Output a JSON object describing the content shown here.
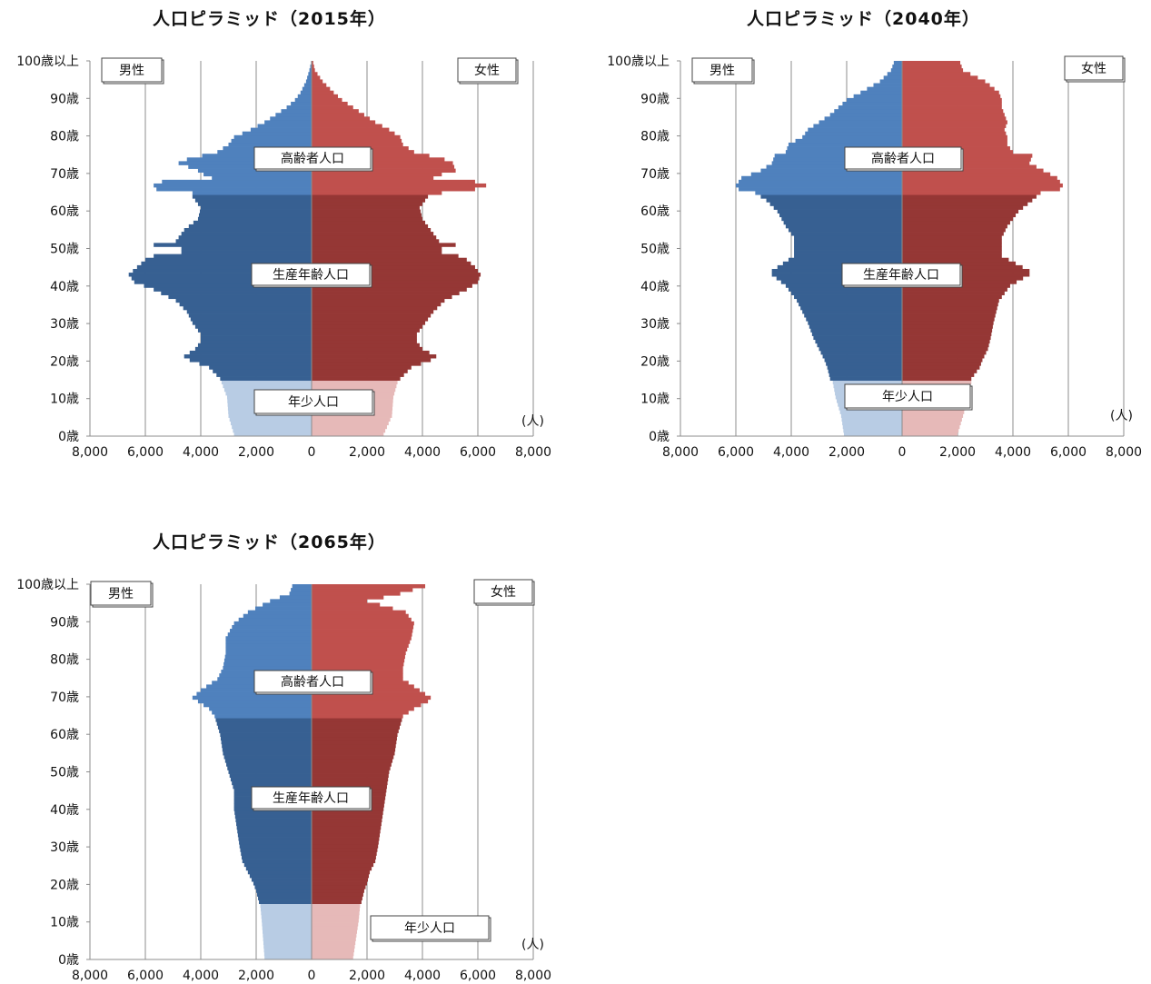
{
  "chart_data": [
    {
      "type": "bar",
      "subtype": "population-pyramid",
      "title": "人口ピラミッド（2015年）",
      "unit_label": "(人)",
      "labels": {
        "male": "男性",
        "female": "女性",
        "elderly": "高齢者人口",
        "working": "生産年齢人口",
        "youth": "年少人口"
      },
      "y_ticks": [
        "0歳",
        "10歳",
        "20歳",
        "30歳",
        "40歳",
        "50歳",
        "60歳",
        "70歳",
        "80歳",
        "90歳",
        "100歳以上"
      ],
      "x_ticks": [
        "8,000",
        "6,000",
        "4,000",
        "2,000",
        "0",
        "2,000",
        "4,000",
        "6,000",
        "8,000"
      ],
      "xlim": [
        -8000,
        8000
      ],
      "age_bins": "0..100 (1-year)",
      "colors": {
        "male_youth": "#b8cce4",
        "male_working": "#376092",
        "male_elderly": "#4f81bd",
        "female_youth": "#e6b9b8",
        "female_working": "#953735",
        "female_elderly": "#c0504d"
      },
      "male_anchors": [
        [
          0,
          2800
        ],
        [
          5,
          3000
        ],
        [
          10,
          3050
        ],
        [
          14,
          3250
        ],
        [
          15,
          3300
        ],
        [
          18,
          3700
        ],
        [
          20,
          4400
        ],
        [
          21,
          4600
        ],
        [
          23,
          4200
        ],
        [
          25,
          4000
        ],
        [
          27,
          4000
        ],
        [
          30,
          4300
        ],
        [
          33,
          4500
        ],
        [
          36,
          4900
        ],
        [
          39,
          5700
        ],
        [
          41,
          6400
        ],
        [
          43,
          6600
        ],
        [
          45,
          6300
        ],
        [
          47,
          6000
        ],
        [
          48,
          5700
        ],
        [
          49,
          4700
        ],
        [
          50,
          4700
        ],
        [
          51,
          5700
        ],
        [
          52,
          4900
        ],
        [
          55,
          4600
        ],
        [
          58,
          4100
        ],
        [
          61,
          4000
        ],
        [
          64,
          4300
        ],
        [
          65,
          4300
        ],
        [
          66,
          5600
        ],
        [
          67,
          5700
        ],
        [
          68,
          5400
        ],
        [
          69,
          3600
        ],
        [
          70,
          3900
        ],
        [
          71,
          4100
        ],
        [
          73,
          4800
        ],
        [
          74,
          4500
        ],
        [
          76,
          3400
        ],
        [
          78,
          3000
        ],
        [
          80,
          2800
        ],
        [
          82,
          2200
        ],
        [
          84,
          1700
        ],
        [
          86,
          1300
        ],
        [
          88,
          900
        ],
        [
          90,
          600
        ],
        [
          92,
          400
        ],
        [
          95,
          200
        ],
        [
          98,
          80
        ],
        [
          100,
          20
        ]
      ],
      "female_anchors": [
        [
          0,
          2600
        ],
        [
          5,
          2900
        ],
        [
          10,
          2950
        ],
        [
          14,
          3100
        ],
        [
          15,
          3200
        ],
        [
          18,
          3600
        ],
        [
          20,
          4300
        ],
        [
          21,
          4500
        ],
        [
          23,
          4000
        ],
        [
          25,
          3800
        ],
        [
          27,
          3800
        ],
        [
          30,
          4100
        ],
        [
          33,
          4400
        ],
        [
          36,
          4800
        ],
        [
          39,
          5600
        ],
        [
          41,
          6000
        ],
        [
          43,
          6100
        ],
        [
          45,
          5900
        ],
        [
          47,
          5600
        ],
        [
          48,
          5300
        ],
        [
          49,
          4700
        ],
        [
          50,
          4700
        ],
        [
          51,
          5200
        ],
        [
          52,
          4600
        ],
        [
          55,
          4300
        ],
        [
          58,
          4000
        ],
        [
          61,
          3900
        ],
        [
          64,
          4200
        ],
        [
          65,
          4700
        ],
        [
          66,
          5900
        ],
        [
          67,
          6300
        ],
        [
          68,
          5900
        ],
        [
          69,
          4400
        ],
        [
          70,
          4700
        ],
        [
          71,
          5200
        ],
        [
          73,
          5100
        ],
        [
          74,
          4800
        ],
        [
          76,
          3700
        ],
        [
          78,
          3300
        ],
        [
          80,
          3200
        ],
        [
          82,
          2800
        ],
        [
          84,
          2300
        ],
        [
          86,
          1900
        ],
        [
          88,
          1500
        ],
        [
          90,
          1100
        ],
        [
          92,
          800
        ],
        [
          95,
          400
        ],
        [
          98,
          120
        ],
        [
          100,
          60
        ]
      ]
    },
    {
      "type": "bar",
      "subtype": "population-pyramid",
      "title": "人口ピラミッド（2040年）",
      "unit_label": "(人)",
      "labels": {
        "male": "男性",
        "female": "女性",
        "elderly": "高齢者人口",
        "working": "生産年齢人口",
        "youth": "年少人口"
      },
      "y_ticks": [
        "0歳",
        "10歳",
        "20歳",
        "30歳",
        "40歳",
        "50歳",
        "60歳",
        "70歳",
        "80歳",
        "90歳",
        "100歳以上"
      ],
      "x_ticks": [
        "8,000",
        "6,000",
        "4,000",
        "2,000",
        "0",
        "2,000",
        "4,000",
        "6,000",
        "8,000"
      ],
      "xlim": [
        -8000,
        8000
      ],
      "age_bins": "0..100 (1-year)",
      "colors": {
        "male_youth": "#b8cce4",
        "male_working": "#376092",
        "male_elderly": "#4f81bd",
        "female_youth": "#e6b9b8",
        "female_working": "#953735",
        "female_elderly": "#c0504d"
      },
      "male_anchors": [
        [
          0,
          2100
        ],
        [
          5,
          2200
        ],
        [
          10,
          2400
        ],
        [
          14,
          2500
        ],
        [
          15,
          2600
        ],
        [
          18,
          2700
        ],
        [
          20,
          2800
        ],
        [
          23,
          3000
        ],
        [
          26,
          3200
        ],
        [
          30,
          3400
        ],
        [
          33,
          3600
        ],
        [
          36,
          3800
        ],
        [
          40,
          4200
        ],
        [
          43,
          4700
        ],
        [
          44,
          4700
        ],
        [
          46,
          4300
        ],
        [
          48,
          3900
        ],
        [
          50,
          3900
        ],
        [
          53,
          3900
        ],
        [
          56,
          4200
        ],
        [
          60,
          4500
        ],
        [
          63,
          4900
        ],
        [
          65,
          5300
        ],
        [
          66,
          5900
        ],
        [
          67,
          6000
        ],
        [
          69,
          5800
        ],
        [
          71,
          5100
        ],
        [
          73,
          4700
        ],
        [
          75,
          4600
        ],
        [
          76,
          4200
        ],
        [
          78,
          4100
        ],
        [
          80,
          3600
        ],
        [
          82,
          3400
        ],
        [
          84,
          3000
        ],
        [
          86,
          2600
        ],
        [
          88,
          2300
        ],
        [
          90,
          2000
        ],
        [
          92,
          1500
        ],
        [
          95,
          800
        ],
        [
          98,
          400
        ],
        [
          100,
          300
        ]
      ],
      "female_anchors": [
        [
          0,
          2000
        ],
        [
          5,
          2200
        ],
        [
          10,
          2400
        ],
        [
          14,
          2500
        ],
        [
          15,
          2500
        ],
        [
          18,
          2800
        ],
        [
          20,
          2900
        ],
        [
          23,
          3100
        ],
        [
          26,
          3200
        ],
        [
          30,
          3300
        ],
        [
          33,
          3400
        ],
        [
          36,
          3500
        ],
        [
          40,
          3900
        ],
        [
          43,
          4600
        ],
        [
          44,
          4600
        ],
        [
          46,
          4100
        ],
        [
          48,
          3600
        ],
        [
          50,
          3600
        ],
        [
          53,
          3600
        ],
        [
          56,
          3800
        ],
        [
          60,
          4200
        ],
        [
          63,
          4700
        ],
        [
          65,
          5000
        ],
        [
          66,
          5700
        ],
        [
          67,
          5800
        ],
        [
          69,
          5600
        ],
        [
          71,
          5100
        ],
        [
          73,
          4600
        ],
        [
          75,
          4700
        ],
        [
          76,
          4000
        ],
        [
          78,
          3800
        ],
        [
          80,
          3800
        ],
        [
          82,
          3700
        ],
        [
          84,
          3800
        ],
        [
          86,
          3700
        ],
        [
          88,
          3600
        ],
        [
          90,
          3600
        ],
        [
          92,
          3500
        ],
        [
          95,
          3000
        ],
        [
          98,
          2200
        ],
        [
          100,
          2100
        ]
      ]
    },
    {
      "type": "bar",
      "subtype": "population-pyramid",
      "title": "人口ピラミッド（2065年）",
      "unit_label": "(人)",
      "labels": {
        "male": "男性",
        "female": "女性",
        "elderly": "高齢者人口",
        "working": "生産年齢人口",
        "youth": "年少人口"
      },
      "y_ticks": [
        "0歳",
        "10歳",
        "20歳",
        "30歳",
        "40歳",
        "50歳",
        "60歳",
        "70歳",
        "80歳",
        "90歳",
        "100歳以上"
      ],
      "x_ticks": [
        "8,000",
        "6,000",
        "4,000",
        "2,000",
        "0",
        "2,000",
        "4,000",
        "6,000",
        "8,000"
      ],
      "xlim": [
        -8000,
        8000
      ],
      "age_bins": "0..100 (1-year)",
      "colors": {
        "male_youth": "#b8cce4",
        "male_working": "#376092",
        "male_elderly": "#4f81bd",
        "female_youth": "#e6b9b8",
        "female_working": "#953735",
        "female_elderly": "#c0504d"
      },
      "male_anchors": [
        [
          0,
          1700
        ],
        [
          5,
          1750
        ],
        [
          10,
          1800
        ],
        [
          14,
          1850
        ],
        [
          15,
          1900
        ],
        [
          18,
          2000
        ],
        [
          20,
          2100
        ],
        [
          23,
          2300
        ],
        [
          26,
          2500
        ],
        [
          30,
          2600
        ],
        [
          35,
          2700
        ],
        [
          40,
          2800
        ],
        [
          45,
          2800
        ],
        [
          50,
          3000
        ],
        [
          55,
          3200
        ],
        [
          60,
          3300
        ],
        [
          65,
          3500
        ],
        [
          67,
          3700
        ],
        [
          69,
          4100
        ],
        [
          70,
          4300
        ],
        [
          72,
          4000
        ],
        [
          75,
          3400
        ],
        [
          78,
          3200
        ],
        [
          82,
          3100
        ],
        [
          86,
          3100
        ],
        [
          90,
          2800
        ],
        [
          93,
          2300
        ],
        [
          96,
          1500
        ],
        [
          98,
          800
        ],
        [
          100,
          700
        ]
      ],
      "female_anchors": [
        [
          0,
          1500
        ],
        [
          5,
          1600
        ],
        [
          10,
          1700
        ],
        [
          14,
          1750
        ],
        [
          15,
          1800
        ],
        [
          18,
          1900
        ],
        [
          20,
          2000
        ],
        [
          23,
          2100
        ],
        [
          26,
          2300
        ],
        [
          30,
          2400
        ],
        [
          35,
          2500
        ],
        [
          40,
          2600
        ],
        [
          45,
          2700
        ],
        [
          50,
          2800
        ],
        [
          55,
          3000
        ],
        [
          60,
          3100
        ],
        [
          65,
          3300
        ],
        [
          67,
          3700
        ],
        [
          69,
          4200
        ],
        [
          70,
          4300
        ],
        [
          72,
          3900
        ],
        [
          75,
          3300
        ],
        [
          78,
          3300
        ],
        [
          82,
          3400
        ],
        [
          86,
          3600
        ],
        [
          90,
          3700
        ],
        [
          93,
          3400
        ],
        [
          96,
          2000
        ],
        [
          98,
          3200
        ],
        [
          100,
          4100
        ]
      ]
    }
  ]
}
